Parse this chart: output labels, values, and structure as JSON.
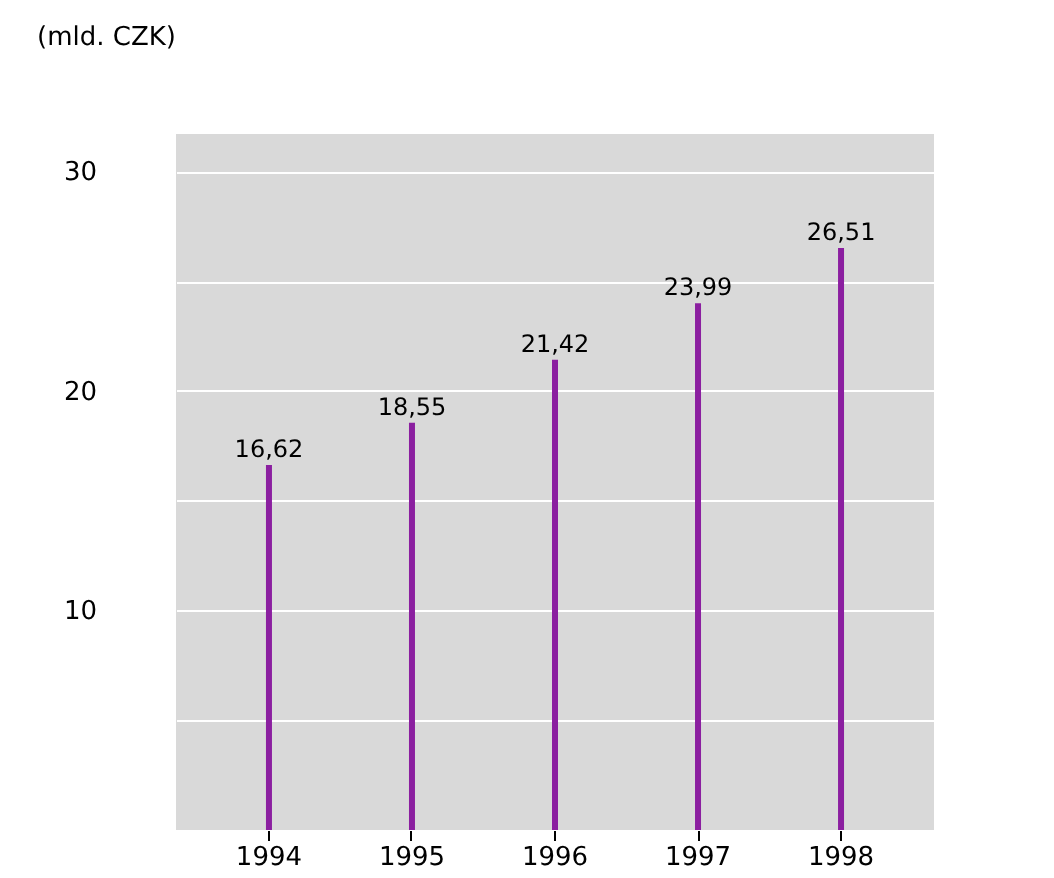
{
  "chart_data": {
    "type": "bar",
    "ylabel": "(mld.  CZK)",
    "categories": [
      "1994",
      "1995",
      "1996",
      "1997",
      "1998"
    ],
    "values": [
      16.62,
      18.55,
      21.42,
      23.99,
      26.51
    ],
    "value_labels": [
      "16,62",
      "18,55",
      "21,42",
      "23,99",
      "26,51"
    ],
    "color": "#8b1fa0",
    "ylim": [
      0,
      31.7
    ],
    "yticks": [
      {
        "value": 5,
        "label": null
      },
      10,
      {
        "value": 15,
        "label": null
      },
      20,
      {
        "value": 25,
        "label": null
      },
      30
    ],
    "grid": "y"
  }
}
